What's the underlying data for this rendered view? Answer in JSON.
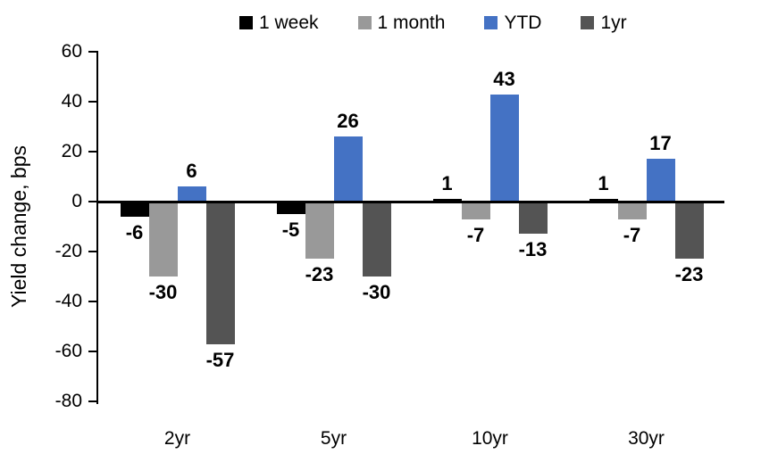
{
  "chart_data": {
    "type": "bar",
    "title": "",
    "categories": [
      "2yr",
      "5yr",
      "10yr",
      "30yr"
    ],
    "series": [
      {
        "name": "1 week",
        "color": "#000000",
        "values": [
          -6,
          -5,
          1,
          1
        ]
      },
      {
        "name": "1 month",
        "color": "#999999",
        "values": [
          -30,
          -23,
          -7,
          -7
        ]
      },
      {
        "name": "YTD",
        "color": "#4472c4",
        "values": [
          6,
          26,
          43,
          17
        ]
      },
      {
        "name": "1yr",
        "color": "#545454",
        "values": [
          -57,
          -30,
          -13,
          -23
        ]
      }
    ],
    "xlabel": "",
    "ylabel": "Yield change, bps",
    "ylim": [
      -80,
      60
    ],
    "ytick_step": 20,
    "grid": false,
    "legend_position": "top",
    "data_labels": "outside-end",
    "axis_color": "#000000",
    "label_color": "#000000"
  }
}
